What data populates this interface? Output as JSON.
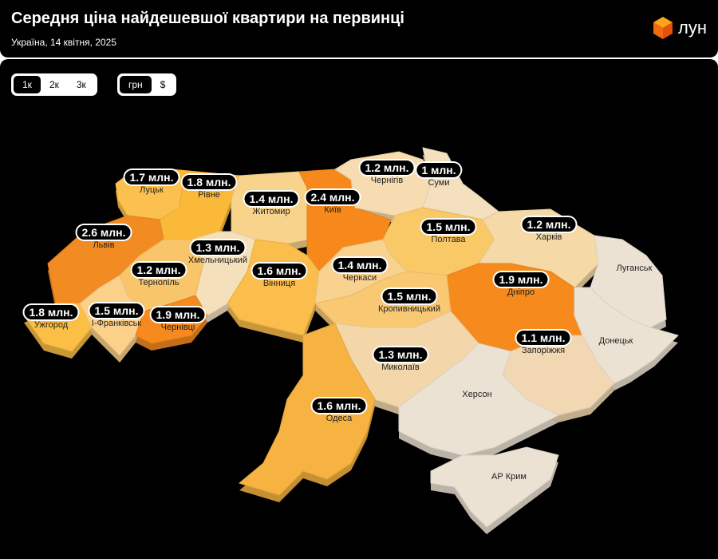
{
  "header": {
    "title": "Середня ціна найдешевшої квартири на первинці",
    "subtitle": "Україна, 14 квітня, 2025",
    "logo_text": "лун",
    "logo_icon": "orange-cube-icon"
  },
  "controls": {
    "rooms": [
      {
        "label": "1к",
        "active": true
      },
      {
        "label": "2к",
        "active": false
      },
      {
        "label": "3к",
        "active": false
      }
    ],
    "currency": [
      {
        "label": "грн",
        "active": true
      },
      {
        "label": "$",
        "active": false
      }
    ]
  },
  "colors": {
    "no_data": "#ece2d3",
    "low": "#f5dcae",
    "mid": "#fbbf45",
    "high": "#f68a1c"
  },
  "regions": [
    {
      "id": "volyn",
      "city": "Луцьк",
      "price": "1.7 млн.",
      "color": "#fbc04e"
    },
    {
      "id": "rivne",
      "city": "Рівне",
      "price": "1.8 млн.",
      "color": "#fbb93a"
    },
    {
      "id": "zhytomyr",
      "city": "Житомир",
      "price": "1.4 млн.",
      "color": "#f8d38c"
    },
    {
      "id": "kyiv",
      "city": "Київ",
      "price": "2.4 млн.",
      "color": "#f7891c"
    },
    {
      "id": "chernihiv",
      "city": "Чернігів",
      "price": "1.2 млн.",
      "color": "#f6dcb0"
    },
    {
      "id": "sumy",
      "city": "Суми",
      "price": "1 млн.",
      "color": "#f4e0bf"
    },
    {
      "id": "poltava",
      "city": "Полтава",
      "price": "1.5 млн.",
      "color": "#f9c867"
    },
    {
      "id": "kharkiv",
      "city": "Харків",
      "price": "1.2 млн.",
      "color": "#f5d9a6"
    },
    {
      "id": "luhansk",
      "city": "Луганськ",
      "price": "",
      "color": "#ece2d3"
    },
    {
      "id": "lviv",
      "city": "Львів",
      "price": "2.6 млн.",
      "color": "#f28b22"
    },
    {
      "id": "khmelnytskyi",
      "city": "Хмельницький",
      "price": "1.3 млн.",
      "color": "#f5e0bc"
    },
    {
      "id": "ternopil",
      "city": "Тернопіль",
      "price": "1.2 млн.",
      "color": "#f9c56a"
    },
    {
      "id": "vinnytsia",
      "city": "Вінниця",
      "price": "1.6 млн.",
      "color": "#fbbd4c"
    },
    {
      "id": "cherkasy",
      "city": "Черкаси",
      "price": "1.4 млн.",
      "color": "#f8d28e"
    },
    {
      "id": "dnipro",
      "city": "Дніпро",
      "price": "1.9 млн.",
      "color": "#f68a1c"
    },
    {
      "id": "kirovohrad",
      "city": "Кропивницький",
      "price": "1.5 млн.",
      "color": "#f9c872"
    },
    {
      "id": "zakarpattia",
      "city": "Ужгород",
      "price": "1.8 млн.",
      "color": "#fbbf45"
    },
    {
      "id": "ivano-frankivsk",
      "city": "І-Франківськ",
      "price": "1.5 млн.",
      "color": "#fad08a"
    },
    {
      "id": "chernivtsi",
      "city": "Чернівці",
      "price": "1.9 млн.",
      "color": "#f68a1e"
    },
    {
      "id": "zaporizhzhia",
      "city": "Запоріжжя",
      "price": "1.1 млн.",
      "color": "#f1d7b2"
    },
    {
      "id": "donetsk",
      "city": "Донецьк",
      "price": "",
      "color": "#ece2d3"
    },
    {
      "id": "mykolaiv",
      "city": "Миколаїв",
      "price": "1.3 млн.",
      "color": "#f3d7ab"
    },
    {
      "id": "kherson",
      "city": "Херсон",
      "price": "",
      "color": "#ece2d3"
    },
    {
      "id": "odesa",
      "city": "Одеса",
      "price": "1.6 млн.",
      "color": "#f7b341"
    },
    {
      "id": "crimea",
      "city": "АР Крим",
      "price": "",
      "color": "#ece2d3"
    }
  ]
}
